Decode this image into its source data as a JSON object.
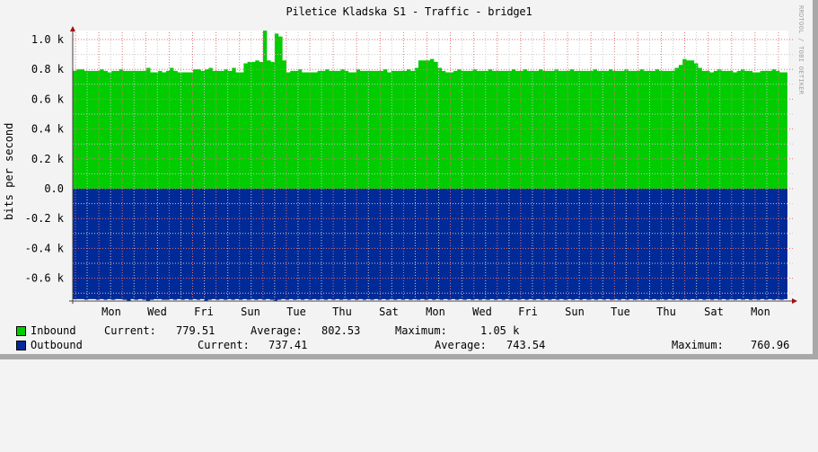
{
  "title": "Piletice Kladska S1 - Traffic - bridge1",
  "watermark": "RRDTOOL / TOBI OETIKER",
  "colors": {
    "inbound": "#00cc00",
    "outbound": "#002a97",
    "major_grid": "#e07070",
    "minor_grid": "#c8c8c8",
    "axis": "#404040",
    "arrow": "#a01010",
    "background": "#f3f3f3",
    "plot_background": "#ffffff"
  },
  "legend": {
    "inbound": {
      "name": "Inbound",
      "current_label": "Current:",
      "current": "779.51",
      "average_label": "Average:",
      "average": "802.53",
      "maximum_label": "Maximum:",
      "maximum": "1.05 k"
    },
    "outbound": {
      "name": "Outbound",
      "current_label": "Current:",
      "current": "737.41",
      "average_label": "Average:",
      "average": "743.54",
      "maximum_label": "Maximum:",
      "maximum": "760.96"
    }
  },
  "chart_data": {
    "type": "area",
    "title": "Piletice Kladska S1 - Traffic - bridge1",
    "xlabel": "",
    "ylabel": "bits per second",
    "ylim": [
      -0.75,
      1.1
    ],
    "y_unit": "k",
    "y_ticks": [
      "1.0 k",
      "0.8 k",
      "0.6 k",
      "0.4 k",
      "0.2 k",
      "0.0",
      "-0.2 k",
      "-0.4 k",
      "-0.6 k"
    ],
    "y_tick_values": [
      1.0,
      0.8,
      0.6,
      0.4,
      0.2,
      0.0,
      -0.2,
      -0.4,
      -0.6
    ],
    "x_ticks": [
      "Mon",
      "Wed",
      "Fri",
      "Sun",
      "Tue",
      "Thu",
      "Sat",
      "Mon",
      "Wed",
      "Fri",
      "Sun",
      "Tue",
      "Thu",
      "Sat",
      "Mon"
    ],
    "grid": true,
    "legend_position": "bottom",
    "series": [
      {
        "name": "Inbound",
        "color": "#00cc00",
        "direction": "positive",
        "current": 779.51,
        "average": 802.53,
        "maximum": 1050,
        "values": [
          0.79,
          0.8,
          0.8,
          0.79,
          0.79,
          0.79,
          0.79,
          0.8,
          0.79,
          0.78,
          0.79,
          0.79,
          0.8,
          0.79,
          0.79,
          0.79,
          0.79,
          0.79,
          0.79,
          0.81,
          0.78,
          0.78,
          0.79,
          0.78,
          0.79,
          0.81,
          0.79,
          0.78,
          0.78,
          0.78,
          0.78,
          0.8,
          0.8,
          0.79,
          0.8,
          0.81,
          0.79,
          0.79,
          0.79,
          0.8,
          0.79,
          0.81,
          0.78,
          0.78,
          0.84,
          0.85,
          0.85,
          0.86,
          0.85,
          1.06,
          0.86,
          0.85,
          1.04,
          1.02,
          0.86,
          0.78,
          0.79,
          0.79,
          0.8,
          0.78,
          0.78,
          0.78,
          0.78,
          0.79,
          0.79,
          0.8,
          0.79,
          0.79,
          0.79,
          0.8,
          0.79,
          0.78,
          0.78,
          0.8,
          0.79,
          0.79,
          0.79,
          0.79,
          0.79,
          0.79,
          0.8,
          0.78,
          0.79,
          0.79,
          0.79,
          0.79,
          0.8,
          0.79,
          0.81,
          0.86,
          0.86,
          0.86,
          0.87,
          0.85,
          0.81,
          0.79,
          0.78,
          0.78,
          0.79,
          0.8,
          0.79,
          0.79,
          0.79,
          0.8,
          0.79,
          0.79,
          0.79,
          0.8,
          0.79,
          0.79,
          0.79,
          0.79,
          0.79,
          0.8,
          0.79,
          0.79,
          0.8,
          0.79,
          0.79,
          0.79,
          0.8,
          0.79,
          0.79,
          0.79,
          0.8,
          0.79,
          0.79,
          0.79,
          0.8,
          0.79,
          0.79,
          0.79,
          0.79,
          0.79,
          0.8,
          0.79,
          0.79,
          0.79,
          0.8,
          0.79,
          0.79,
          0.79,
          0.8,
          0.79,
          0.79,
          0.79,
          0.8,
          0.79,
          0.79,
          0.79,
          0.8,
          0.79,
          0.79,
          0.79,
          0.79,
          0.81,
          0.83,
          0.87,
          0.86,
          0.86,
          0.84,
          0.81,
          0.79,
          0.79,
          0.78,
          0.79,
          0.8,
          0.79,
          0.79,
          0.79,
          0.78,
          0.79,
          0.8,
          0.79,
          0.79,
          0.78,
          0.78,
          0.79,
          0.79,
          0.79,
          0.8,
          0.79,
          0.78,
          0.78
        ]
      },
      {
        "name": "Outbound",
        "color": "#002a97",
        "direction": "negative",
        "current": 737.41,
        "average": 743.54,
        "maximum": 760.96,
        "values": [
          0.74,
          0.74,
          0.74,
          0.745,
          0.74,
          0.74,
          0.745,
          0.74,
          0.745,
          0.74,
          0.745,
          0.74,
          0.74,
          0.745,
          0.75,
          0.74,
          0.745,
          0.74,
          0.745,
          0.75,
          0.745,
          0.74,
          0.74,
          0.745,
          0.745,
          0.74,
          0.745,
          0.74,
          0.745,
          0.74,
          0.745,
          0.74,
          0.745,
          0.74,
          0.75,
          0.745,
          0.74,
          0.745,
          0.74,
          0.745,
          0.74,
          0.745,
          0.74,
          0.745,
          0.74,
          0.745,
          0.74,
          0.745,
          0.74,
          0.745,
          0.74,
          0.745,
          0.755,
          0.745,
          0.74,
          0.745,
          0.74,
          0.745,
          0.74,
          0.745,
          0.74,
          0.745,
          0.74,
          0.745,
          0.74,
          0.745,
          0.74,
          0.745,
          0.74,
          0.745,
          0.74,
          0.745,
          0.74,
          0.745,
          0.74,
          0.745,
          0.74,
          0.745,
          0.74,
          0.745,
          0.74,
          0.745,
          0.74,
          0.745,
          0.74,
          0.745,
          0.74,
          0.745,
          0.74,
          0.745,
          0.74,
          0.745,
          0.74,
          0.745,
          0.74,
          0.745,
          0.74,
          0.745,
          0.74,
          0.745,
          0.74,
          0.745,
          0.74,
          0.745,
          0.74,
          0.745,
          0.74,
          0.745,
          0.74,
          0.745,
          0.74,
          0.745,
          0.74,
          0.745,
          0.74,
          0.745,
          0.74,
          0.745,
          0.74,
          0.745,
          0.74,
          0.745,
          0.74,
          0.745,
          0.74,
          0.745,
          0.74,
          0.745,
          0.74,
          0.745,
          0.74,
          0.745,
          0.74,
          0.745,
          0.74,
          0.745,
          0.74,
          0.745,
          0.74,
          0.745,
          0.74,
          0.745,
          0.74,
          0.745,
          0.74,
          0.745,
          0.74,
          0.745,
          0.74,
          0.745,
          0.74,
          0.745,
          0.74,
          0.745,
          0.74,
          0.745,
          0.74,
          0.745,
          0.74,
          0.745,
          0.74,
          0.745,
          0.74,
          0.745,
          0.74,
          0.745,
          0.74,
          0.745,
          0.74,
          0.745,
          0.74,
          0.745,
          0.74,
          0.745,
          0.74,
          0.745,
          0.74,
          0.745,
          0.74,
          0.745,
          0.74,
          0.745,
          0.74,
          0.745,
          0.74
        ]
      }
    ]
  }
}
